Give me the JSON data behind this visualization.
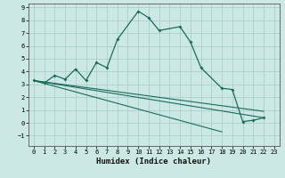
{
  "xlabel": "Humidex (Indice chaleur)",
  "bg_color": "#cce8e4",
  "grid_color": "#aacfcb",
  "line_color": "#1a6b5a",
  "xlim": [
    -0.5,
    23.5
  ],
  "ylim": [
    -1.8,
    9.3
  ],
  "xticks": [
    0,
    1,
    2,
    3,
    4,
    5,
    6,
    7,
    8,
    9,
    10,
    11,
    12,
    13,
    14,
    15,
    16,
    17,
    18,
    19,
    20,
    21,
    22,
    23
  ],
  "yticks": [
    -1,
    0,
    1,
    2,
    3,
    4,
    5,
    6,
    7,
    8,
    9
  ],
  "series_x": [
    0,
    1,
    2,
    3,
    4,
    5,
    6,
    7,
    8,
    10,
    11,
    12,
    14,
    15,
    16,
    18,
    19,
    20,
    21,
    22
  ],
  "series_y": [
    3.3,
    3.1,
    3.7,
    3.4,
    4.2,
    3.3,
    4.7,
    4.3,
    6.5,
    8.7,
    8.2,
    7.2,
    7.5,
    6.3,
    4.3,
    2.7,
    2.6,
    0.1,
    0.2,
    0.4
  ],
  "line1_x": [
    0,
    22
  ],
  "line1_y": [
    3.3,
    0.4
  ],
  "line2_x": [
    0,
    18
  ],
  "line2_y": [
    3.3,
    -0.7
  ],
  "line3_x": [
    0,
    22
  ],
  "line3_y": [
    3.3,
    0.9
  ]
}
